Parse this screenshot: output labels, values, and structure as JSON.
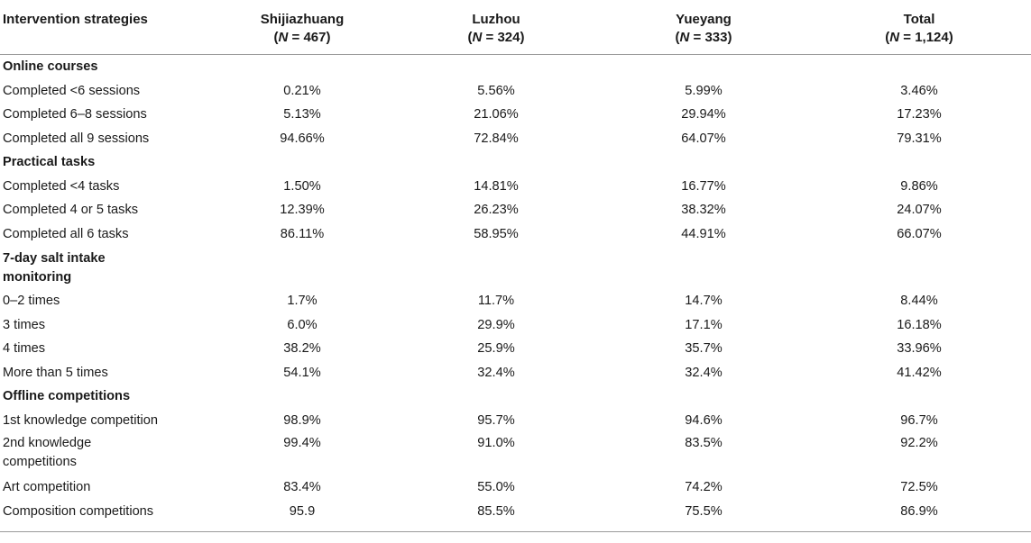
{
  "header": {
    "col1": "Intervention strategies",
    "columns": [
      {
        "name": "Shijiazhuang",
        "n_prefix": "(",
        "n_label": "N",
        "n_value": " = 467)"
      },
      {
        "name": "Luzhou",
        "n_prefix": "(",
        "n_label": "N",
        "n_value": " = 324)"
      },
      {
        "name": "Yueyang",
        "n_prefix": "(",
        "n_label": "N",
        "n_value": " = 333)"
      },
      {
        "name": "Total",
        "n_prefix": "(",
        "n_label": "N",
        "n_value": " = 1,124)"
      }
    ]
  },
  "sections": [
    {
      "title": "Online courses",
      "rows": [
        {
          "label": "Completed <6 sessions",
          "values": [
            "0.21%",
            "5.56%",
            "5.99%",
            "3.46%"
          ]
        },
        {
          "label": "Completed 6–8 sessions",
          "values": [
            "5.13%",
            "21.06%",
            "29.94%",
            "17.23%"
          ]
        },
        {
          "label": "Completed all 9 sessions",
          "values": [
            "94.66%",
            "72.84%",
            "64.07%",
            "79.31%"
          ]
        }
      ]
    },
    {
      "title": "Practical tasks",
      "rows": [
        {
          "label": "Completed <4 tasks",
          "values": [
            "1.50%",
            "14.81%",
            "16.77%",
            "9.86%"
          ]
        },
        {
          "label": "Completed 4 or 5 tasks",
          "values": [
            "12.39%",
            "26.23%",
            "38.32%",
            "24.07%"
          ]
        },
        {
          "label": "Completed all 6 tasks",
          "values": [
            "86.11%",
            "58.95%",
            "44.91%",
            "66.07%"
          ]
        }
      ]
    },
    {
      "title_line1": "7-day salt intake",
      "title_line2": "monitoring",
      "rows": [
        {
          "label": "0–2 times",
          "values": [
            "1.7%",
            "11.7%",
            "14.7%",
            "8.44%"
          ]
        },
        {
          "label": "3 times",
          "values": [
            "6.0%",
            "29.9%",
            "17.1%",
            "16.18%"
          ]
        },
        {
          "label": "4 times",
          "values": [
            "38.2%",
            "25.9%",
            "35.7%",
            "33.96%"
          ]
        },
        {
          "label": "More than 5 times",
          "values": [
            "54.1%",
            "32.4%",
            "32.4%",
            "41.42%"
          ]
        }
      ]
    },
    {
      "title": "Offline competitions",
      "rows": [
        {
          "label": "1st knowledge competition",
          "values": [
            "98.9%",
            "95.7%",
            "94.6%",
            "96.7%"
          ]
        },
        {
          "label_line1": "2nd knowledge",
          "label_line2": "competitions",
          "values": [
            "99.4%",
            "91.0%",
            "83.5%",
            "92.2%"
          ]
        },
        {
          "label": "Art competition",
          "values": [
            "83.4%",
            "55.0%",
            "74.2%",
            "72.5%"
          ]
        },
        {
          "label": "Composition competitions",
          "values": [
            "95.9",
            "85.5%",
            "75.5%",
            "86.9%"
          ]
        }
      ]
    }
  ]
}
